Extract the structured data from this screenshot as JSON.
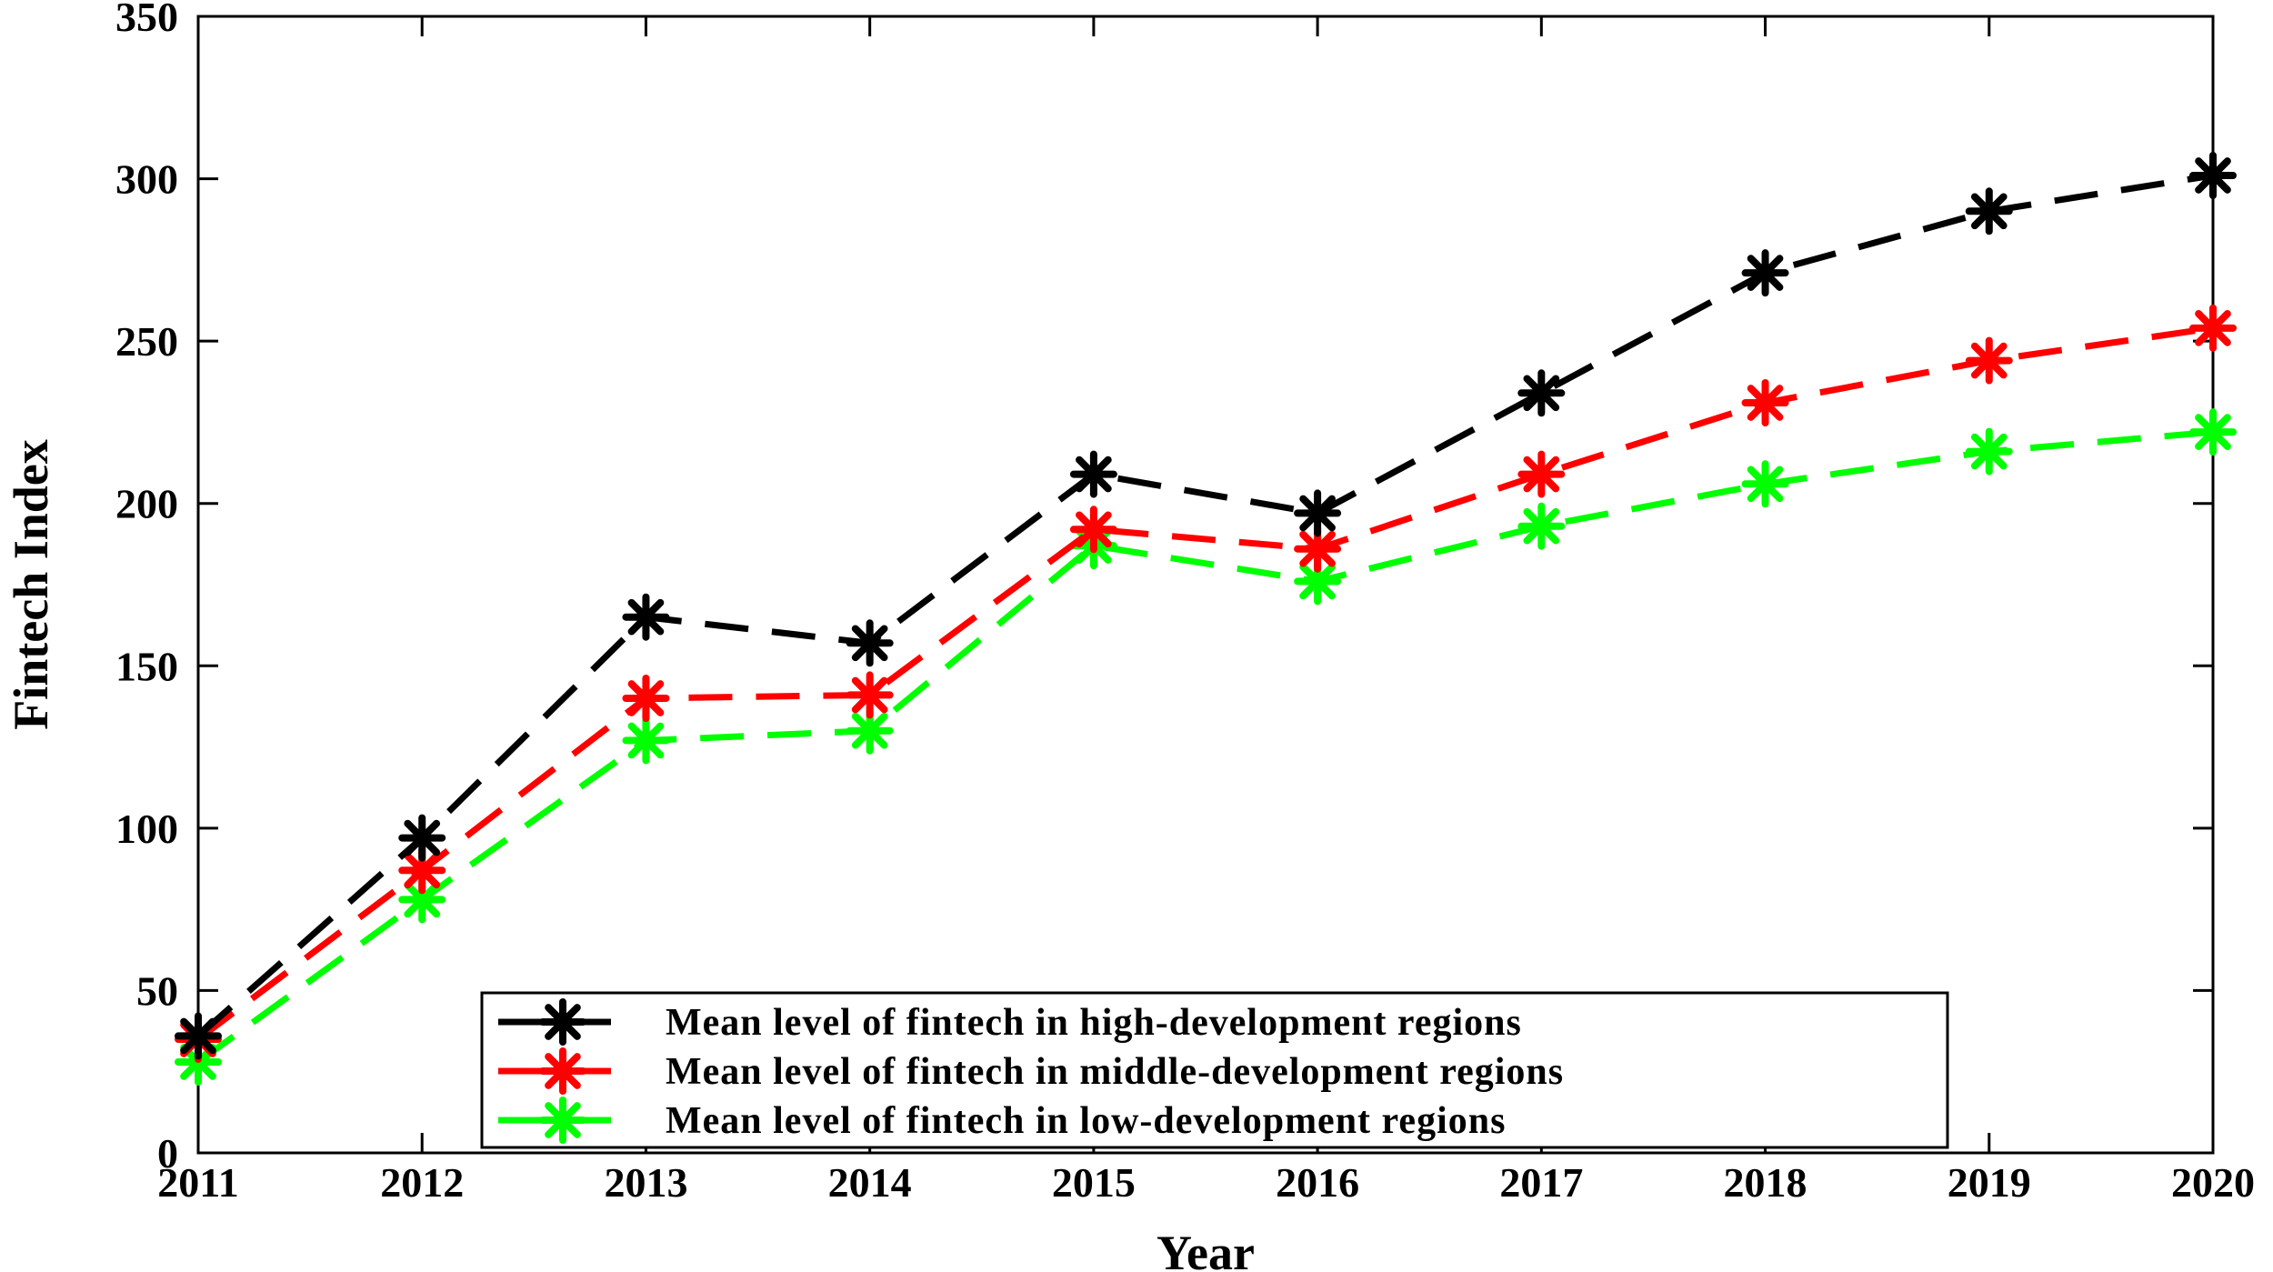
{
  "chart_data": {
    "type": "line",
    "title": "",
    "xlabel": "Year",
    "ylabel": "Fintech Index",
    "x": [
      "2011",
      "2012",
      "2013",
      "2014",
      "2015",
      "2016",
      "2017",
      "2018",
      "2019",
      "2020"
    ],
    "ylim": [
      0,
      350
    ],
    "yticks": [
      "0",
      "50",
      "100",
      "150",
      "200",
      "250",
      "300",
      "350"
    ],
    "grid": false,
    "legend_position": "bottom-center",
    "series": [
      {
        "name": "Mean level of fintech in high-development regions",
        "color": "#000000",
        "marker": "asterisk",
        "values": [
          36,
          97,
          165,
          157,
          209,
          197,
          234,
          271,
          290,
          301
        ]
      },
      {
        "name": "Mean level of fintech in middle-development regions",
        "color": "#ff0000",
        "marker": "asterisk",
        "values": [
          35,
          87,
          140,
          141,
          192,
          186,
          209,
          231,
          244,
          254
        ]
      },
      {
        "name": "Mean level of fintech in low-development regions",
        "color": "#00ff00",
        "marker": "asterisk",
        "values": [
          28,
          78,
          127,
          130,
          187,
          176,
          193,
          206,
          216,
          222
        ]
      }
    ]
  }
}
